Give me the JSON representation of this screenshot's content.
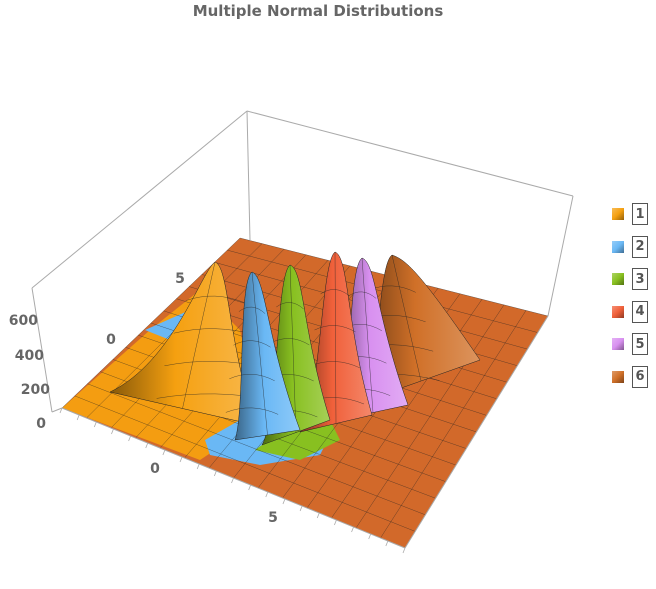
{
  "chart_data": {
    "type": "surface3d",
    "title": "Multiple Normal Distributions",
    "x_ticks": [
      "0",
      "5"
    ],
    "y_ticks": [
      "0",
      "5"
    ],
    "z_ticks": [
      "0",
      "200",
      "400",
      "600"
    ],
    "zlim": [
      0,
      700
    ],
    "series": [
      {
        "name": "1",
        "color": "#f5a010",
        "peak": 620
      },
      {
        "name": "2",
        "color": "#6ab8f5",
        "peak": 600
      },
      {
        "name": "3",
        "color": "#88c020",
        "peak": 620
      },
      {
        "name": "4",
        "color": "#f0603a",
        "peak": 660
      },
      {
        "name": "5",
        "color": "#d890f0",
        "peak": 630
      },
      {
        "name": "6",
        "color": "#d07028",
        "peak": 620
      }
    ],
    "legend_position": "right",
    "floor_color": "#d2692a"
  }
}
